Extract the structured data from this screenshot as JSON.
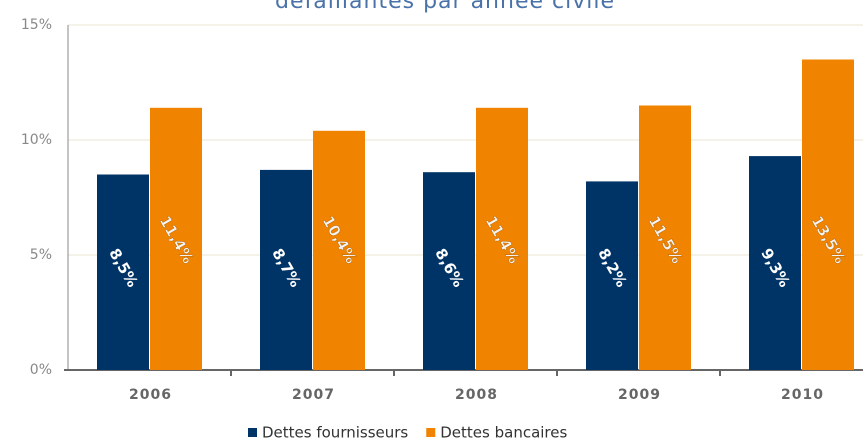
{
  "chart_data": {
    "type": "bar",
    "title": "défaillantes par année civile",
    "categories": [
      "2006",
      "2007",
      "2008",
      "2009",
      "2010"
    ],
    "series": [
      {
        "name": "Dettes fournisseurs",
        "color": "#003366",
        "values": [
          8.5,
          8.7,
          8.6,
          8.2,
          9.3
        ],
        "value_labels": [
          "8,5%",
          "8,7%",
          "8,6%",
          "8,2%",
          "9,3%"
        ]
      },
      {
        "name": "Dettes bancaires",
        "color": "#f08300",
        "values": [
          11.4,
          10.4,
          11.4,
          11.5,
          13.5
        ],
        "value_labels": [
          "11,4%",
          "10,4%",
          "11,4%",
          "11,5%",
          "13,5%"
        ]
      }
    ],
    "ylim": [
      0,
      15
    ],
    "yticks": [
      {
        "value": 0,
        "label": "0%"
      },
      {
        "value": 5,
        "label": "5%"
      },
      {
        "value": 10,
        "label": "10%"
      },
      {
        "value": 15,
        "label": "15%"
      }
    ],
    "grid": true
  }
}
